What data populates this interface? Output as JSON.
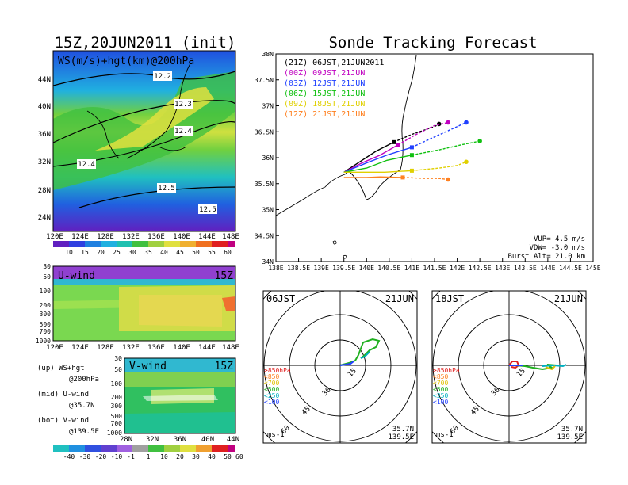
{
  "main_title": "Sonde Tracking Forecast",
  "left_title": "15Z,20JUN2011 (init)",
  "panels": {
    "ws": {
      "label": "WS(m/s)+hgt(km)@200hPa",
      "lat_ticks": [
        "44N",
        "40N",
        "36N",
        "32N",
        "28N",
        "24N"
      ],
      "lon_ticks": [
        "120E",
        "124E",
        "128E",
        "132E",
        "136E",
        "140E",
        "144E",
        "148E"
      ],
      "contour_labels": [
        "12.2",
        "12.3",
        "12.4",
        "12.4",
        "12.5",
        "12.5"
      ],
      "colorbar": [
        "10",
        "15",
        "20",
        "25",
        "30",
        "35",
        "40",
        "45",
        "50",
        "55",
        "60"
      ]
    },
    "u": {
      "label": "U-wind",
      "time": "15Z",
      "p_ticks": [
        "30",
        "50",
        "100",
        "200",
        "300",
        "500",
        "700",
        "1000"
      ],
      "lon_ticks": [
        "120E",
        "124E",
        "128E",
        "132E",
        "136E",
        "140E",
        "144E",
        "148E"
      ]
    },
    "v": {
      "label": "V-wind",
      "time": "15Z",
      "p_ticks": [
        "30",
        "50",
        "100",
        "200",
        "300",
        "500",
        "700",
        "1000"
      ],
      "lat_ticks": [
        "28N",
        "32N",
        "36N",
        "40N",
        "44N"
      ]
    },
    "notes": [
      [
        "(up) WS+hgt",
        "@200hPa"
      ],
      [
        "(mid) U-wind",
        "@35.7N"
      ],
      [
        "(bot) V-wind",
        "@139.5E"
      ]
    ],
    "wind_colorbar": [
      "-40",
      "-30",
      "-20",
      "-10",
      "-1",
      "1",
      "10",
      "20",
      "30",
      "40",
      "50",
      "60"
    ]
  },
  "track_map": {
    "lat_ticks": [
      "38N",
      "37.5N",
      "37N",
      "36.5N",
      "36N",
      "35.5N",
      "35N",
      "34.5N",
      "34N"
    ],
    "lon_ticks": [
      "138E",
      "138.5E",
      "139E",
      "139.5E",
      "140E",
      "140.5E",
      "141E",
      "141.5E",
      "142E",
      "142.5E",
      "143E",
      "143.5E",
      "144E",
      "144.5E",
      "145E"
    ],
    "launches": [
      {
        "label": "(21Z) 06JST,21JUN2011",
        "color": "#000000"
      },
      {
        "label": "(00Z) 09JST,21JUN",
        "color": "#c000c0"
      },
      {
        "label": "(03Z) 12JST,21JUN",
        "color": "#2040ff"
      },
      {
        "label": "(06Z) 15JST,21JUN",
        "color": "#10c010"
      },
      {
        "label": "(09Z) 18JST,21JUN",
        "color": "#e0d000"
      },
      {
        "label": "(12Z) 21JST,21JUN",
        "color": "#ff8020"
      }
    ],
    "params": [
      "VUP= 4.5 m/s",
      "VDW= -3.0 m/s",
      "Burst Alt= 21.0 km"
    ]
  },
  "hodographs": [
    {
      "time": "06JST",
      "date": "21JUN",
      "lat": "35.7N",
      "lon": "139.5E",
      "unit": "ms-1",
      "ring_labels": [
        "15",
        "30",
        "45",
        "60"
      ]
    },
    {
      "time": "18JST",
      "date": "21JUN",
      "lat": "35.7N",
      "lon": "139.5E",
      "unit": "ms-1",
      "ring_labels": [
        "15",
        "30",
        "45",
        "60"
      ]
    }
  ],
  "hodo_legend": [
    {
      "label": "≥850hPa",
      "color": "#e02020"
    },
    {
      "label": "<850",
      "color": "#ff8020"
    },
    {
      "label": "<700",
      "color": "#e0c000"
    },
    {
      "label": "<500",
      "color": "#20b020"
    },
    {
      "label": "<250",
      "color": "#00b0c0"
    },
    {
      "label": "<100",
      "color": "#2040ff"
    }
  ],
  "chart_data": {
    "type": "line",
    "x": [
      139.5,
      140.0,
      140.5,
      141.0,
      141.5,
      142.0,
      142.3
    ],
    "x_unit": "longitude (E)",
    "y_unit": "latitude (N)",
    "xlim": [
      138,
      145
    ],
    "ylim": [
      34,
      38
    ],
    "series": [
      {
        "name": "(21Z) 06JST,21JUN2011",
        "x": [
          139.5,
          139.9,
          140.2,
          140.6,
          141.0,
          141.5,
          141.6
        ],
        "y": [
          35.72,
          35.95,
          36.12,
          36.3,
          36.45,
          36.6,
          36.65
        ]
      },
      {
        "name": "(00Z) 09JST,21JUN",
        "x": [
          139.5,
          139.9,
          140.3,
          140.7,
          141.1,
          141.5,
          141.8
        ],
        "y": [
          35.72,
          35.9,
          36.05,
          36.25,
          36.45,
          36.62,
          36.68
        ]
      },
      {
        "name": "(03Z) 12JST,21JUN",
        "x": [
          139.5,
          140.0,
          140.45,
          141.0,
          141.5,
          142.0,
          142.2
        ],
        "y": [
          35.72,
          35.9,
          36.05,
          36.2,
          36.4,
          36.6,
          36.68
        ]
      },
      {
        "name": "(06Z) 15JST,21JUN",
        "x": [
          139.5,
          140.0,
          140.45,
          141.0,
          141.6,
          142.1,
          142.5
        ],
        "y": [
          35.72,
          35.8,
          35.95,
          36.05,
          36.15,
          36.25,
          36.32
        ]
      },
      {
        "name": "(09Z) 18JST,21JUN",
        "x": [
          139.5,
          140.0,
          140.4,
          141.0,
          141.6,
          142.0,
          142.2
        ],
        "y": [
          35.72,
          35.72,
          35.72,
          35.75,
          35.8,
          35.85,
          35.92
        ]
      },
      {
        "name": "(12Z) 21JST,21JUN",
        "x": [
          139.5,
          140.0,
          140.3,
          140.8,
          141.3,
          141.6,
          141.8
        ],
        "y": [
          35.62,
          35.62,
          35.63,
          35.62,
          35.6,
          35.6,
          35.58
        ]
      }
    ]
  }
}
